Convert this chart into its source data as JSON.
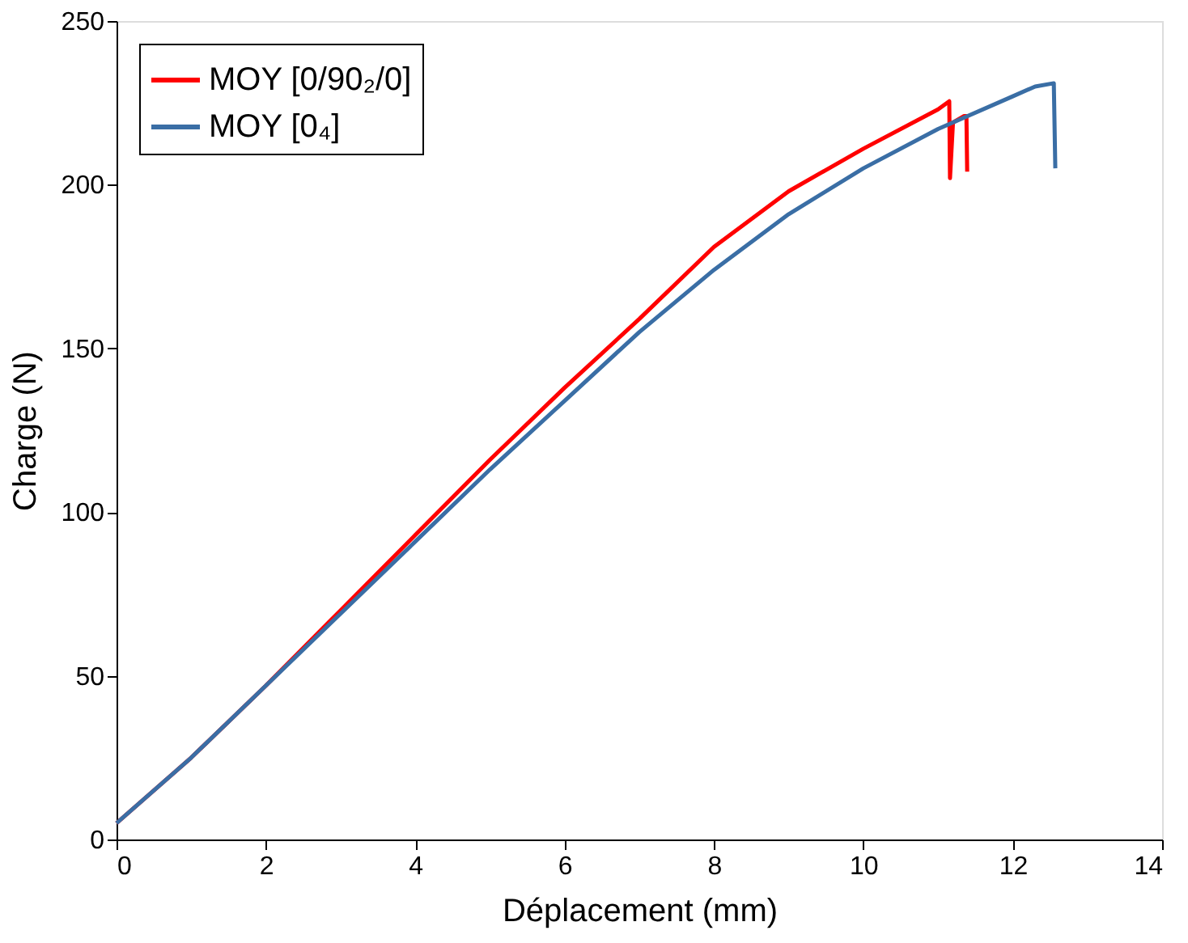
{
  "chart_data": {
    "type": "line",
    "xlabel": "Déplacement (mm)",
    "ylabel": "Charge (N)",
    "xlim": [
      0,
      14
    ],
    "xticks": [
      0,
      2,
      4,
      6,
      8,
      10,
      12,
      14
    ],
    "ylim": [
      0,
      250
    ],
    "yticks": [
      0,
      50,
      100,
      150,
      200,
      250
    ],
    "grid": false,
    "legend": "top left",
    "line_style": "solid",
    "marker": "none",
    "series": [
      {
        "name": "MOY [0/90₂/0]",
        "color": "#ff0000",
        "x": [
          0,
          1,
          2,
          3,
          4,
          5,
          6,
          7,
          8,
          9,
          10,
          11,
          11.15,
          11.16,
          11.2,
          11.35,
          11.38,
          11.39
        ],
        "values": [
          5,
          25,
          47,
          70,
          93,
          116,
          138,
          159,
          181,
          198,
          211,
          223,
          225.5,
          202,
          219,
          221,
          221,
          204
        ]
      },
      {
        "name": "MOY [0₄]",
        "color": "#3a6ea5",
        "x": [
          0,
          1,
          2,
          3,
          4,
          5,
          6,
          7,
          8,
          9,
          10,
          11,
          12,
          12.3,
          12.55,
          12.57
        ],
        "values": [
          5,
          25,
          47,
          69,
          91,
          113,
          134,
          155,
          174,
          191,
          205,
          217,
          227,
          230,
          231,
          205
        ]
      }
    ]
  }
}
